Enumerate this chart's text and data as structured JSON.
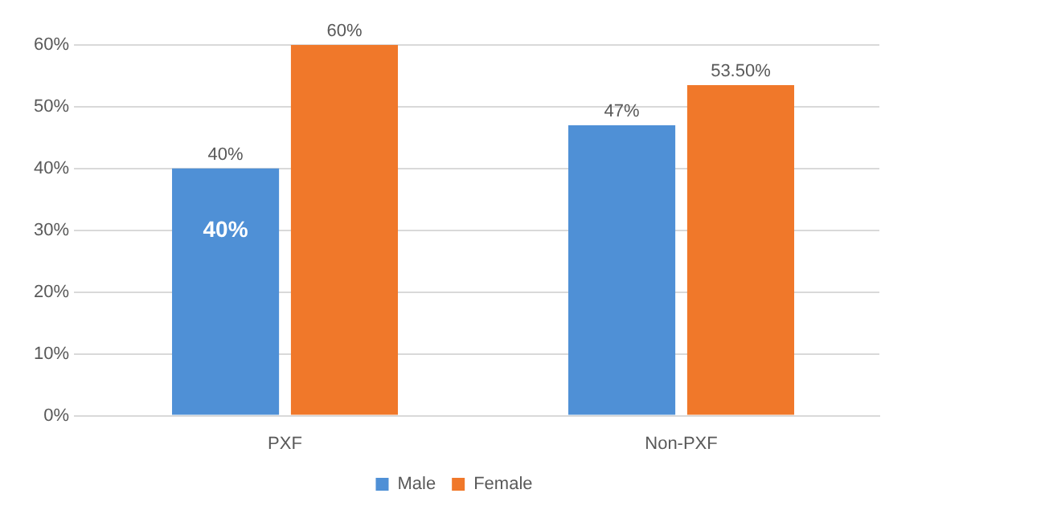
{
  "chart_data": {
    "type": "bar",
    "categories": [
      "PXF",
      "Non-PXF"
    ],
    "series": [
      {
        "name": "Male",
        "color": "#4f90d6",
        "values": [
          40,
          47
        ],
        "value_labels": [
          "40%",
          "47%"
        ]
      },
      {
        "name": "Female",
        "color": "#f0782a",
        "values": [
          60,
          53.5
        ],
        "value_labels": [
          "60%",
          "53.50%"
        ]
      }
    ],
    "ylim": [
      0,
      60
    ],
    "yticks": [
      {
        "value": 0,
        "label": "0%"
      },
      {
        "value": 10,
        "label": "10%"
      },
      {
        "value": 20,
        "label": "20%"
      },
      {
        "value": 30,
        "label": "30%"
      },
      {
        "value": 40,
        "label": "40%"
      },
      {
        "value": 50,
        "label": "50%"
      },
      {
        "value": 60,
        "label": "60%"
      }
    ],
    "grid": "y",
    "legend": "bottom",
    "annotations": [
      {
        "text": "40%",
        "x": "PXF",
        "y": 30
      }
    ]
  }
}
